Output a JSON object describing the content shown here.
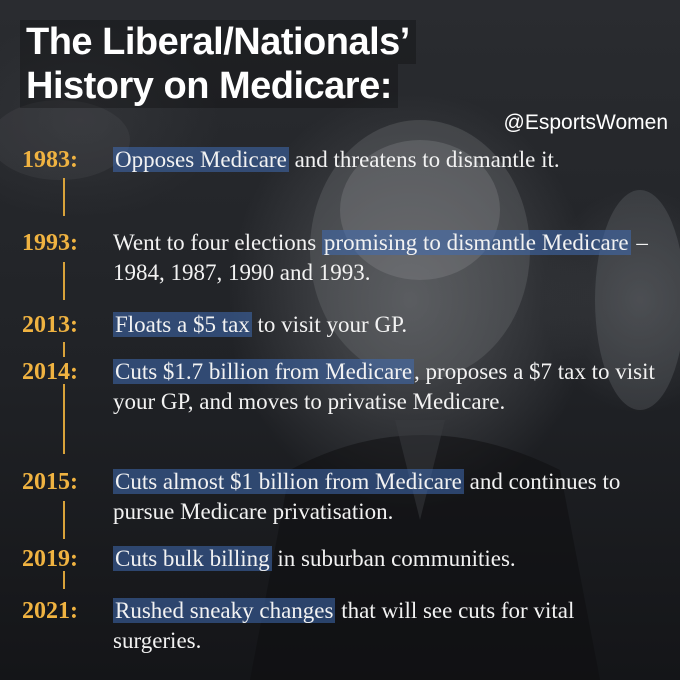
{
  "title": {
    "line1": "The Liberal/Nationals’",
    "line2": "History on Medicare:"
  },
  "handle": "@EsportsWomen",
  "entries": [
    {
      "year": "1983:",
      "highlight": "Opposes Medicare",
      "text_before": "",
      "text_after": " and threatens to dismantle it."
    },
    {
      "year": "1993:",
      "text_before": "Went to four elections ",
      "highlight": "promising to dismantle Medicare",
      "text_after": " – 1984, 1987, 1990 and 1993."
    },
    {
      "year": "2013:",
      "text_before": "",
      "highlight": "Floats a $5 tax",
      "text_after": " to visit your GP."
    },
    {
      "year": "2014:",
      "text_before": "",
      "highlight": "Cuts $1.7 billion from Medicare",
      "text_after": ", proposes a $7 tax to visit your GP, and moves to privatise Medicare."
    },
    {
      "year": "2015:",
      "text_before": "",
      "highlight": "Cuts almost $1 billion from Medicare",
      "text_after": " and continues to pursue Medicare privatisation."
    },
    {
      "year": "2019:",
      "text_before": "",
      "highlight": "Cuts bulk billing",
      "text_after": " in suburban communities."
    },
    {
      "year": "2021:",
      "text_before": "",
      "highlight": "Rushed sneaky changes",
      "text_after": " that will see cuts for vital surgeries."
    }
  ],
  "colors": {
    "year": "#f0b341",
    "highlight": "#406cb2",
    "text": "#f2f2f2",
    "title": "#ffffff"
  }
}
